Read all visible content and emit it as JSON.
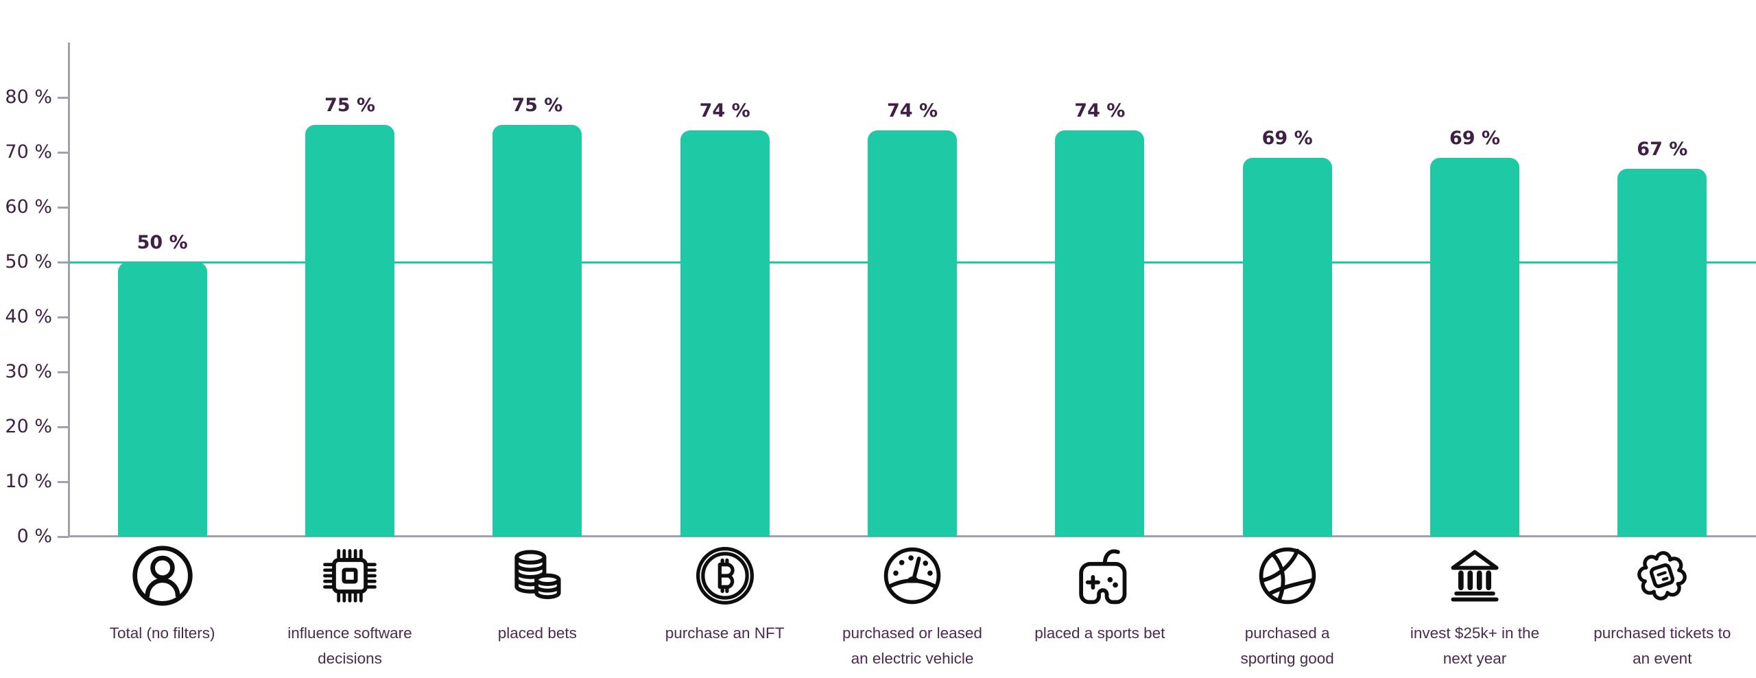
{
  "chart_data": {
    "type": "bar",
    "title": "",
    "xlabel": "",
    "ylabel": "",
    "categories": [
      "Total (no filters)",
      "influence software decisions",
      "placed bets",
      "purchase an NFT",
      "purchased or leased an electric vehicle",
      "placed a sports bet",
      "purchased a sporting good",
      "invest $25k+ in the next year",
      "purchased tickets to an event"
    ],
    "category_line_breaks": [
      [
        "Total (no filters)"
      ],
      [
        "influence software",
        "decisions"
      ],
      [
        "placed bets"
      ],
      [
        "purchase an NFT"
      ],
      [
        "purchased or leased",
        "an electric vehicle"
      ],
      [
        "placed a sports bet"
      ],
      [
        "purchased a",
        "sporting good"
      ],
      [
        "invest $25k+ in the",
        "next year"
      ],
      [
        "purchased tickets to",
        "an event"
      ]
    ],
    "values": [
      50,
      75,
      75,
      74,
      74,
      74,
      69,
      69,
      67
    ],
    "value_labels": [
      "50 %",
      "75 %",
      "75 %",
      "74 %",
      "74 %",
      "74 %",
      "69 %",
      "69 %",
      "67 %"
    ],
    "icons": [
      "user-icon",
      "chip-icon",
      "coins-icon",
      "bitcoin-icon",
      "gauge-icon",
      "gamepad-icon",
      "basketball-icon",
      "bank-icon",
      "ticket-icon"
    ],
    "y_ticks": [
      {
        "value": 0,
        "label": "0 %"
      },
      {
        "value": 10,
        "label": "10 %"
      },
      {
        "value": 20,
        "label": "20 %"
      },
      {
        "value": 30,
        "label": "30 %"
      },
      {
        "value": 40,
        "label": "40 %"
      },
      {
        "value": 50,
        "label": "50 %"
      },
      {
        "value": 60,
        "label": "60 %"
      },
      {
        "value": 70,
        "label": "70 %"
      },
      {
        "value": 80,
        "label": "80 %"
      }
    ],
    "ylim": [
      0,
      90
    ],
    "grid": false,
    "legend": false,
    "bar_color": "#1ecaa5",
    "reference_line": {
      "value": 50,
      "color": "#1ecaa5"
    },
    "axis_color": "#a3a0ac",
    "tick_text_color": "#3f2145",
    "value_text_color": "#3f2145",
    "category_text_color": "#4a2a4e",
    "icon_color": "#0e0e0e"
  }
}
